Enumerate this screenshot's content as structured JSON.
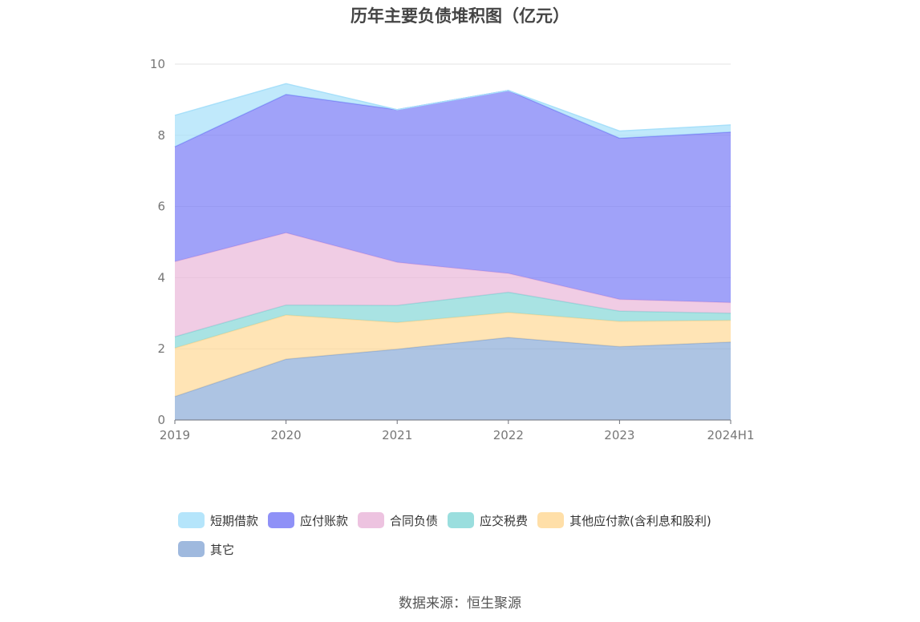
{
  "chart_data": {
    "type": "area",
    "stacked": true,
    "title": "历年主要负债堆积图（亿元）",
    "categories": [
      "2019",
      "2020",
      "2021",
      "2022",
      "2023",
      "2024H1"
    ],
    "ylim": [
      0,
      10
    ],
    "yticks": [
      0,
      2,
      4,
      6,
      8,
      10
    ],
    "grid": true,
    "legend_position": "bottom",
    "series": [
      {
        "name": "其它",
        "color": "#8EADD8",
        "values": [
          0.66,
          1.71,
          1.99,
          2.32,
          2.06,
          2.19
        ]
      },
      {
        "name": "其他应付款(含利息和股利)",
        "color": "#FFD999",
        "values": [
          1.36,
          1.24,
          0.75,
          0.7,
          0.71,
          0.61
        ]
      },
      {
        "name": "应交税费",
        "color": "#88D8D8",
        "values": [
          0.32,
          0.28,
          0.48,
          0.57,
          0.29,
          0.2
        ]
      },
      {
        "name": "合同负债",
        "color": "#EAB8DA",
        "values": [
          2.11,
          2.03,
          1.21,
          0.53,
          0.33,
          0.3
        ]
      },
      {
        "name": "应付账款",
        "color": "#7B7EF6",
        "values": [
          3.23,
          3.89,
          4.29,
          5.14,
          4.53,
          4.79
        ]
      },
      {
        "name": "短期借款",
        "color": "#A8E0FA",
        "values": [
          0.88,
          0.3,
          0.0,
          0.0,
          0.2,
          0.2
        ]
      }
    ]
  },
  "source": "数据来源：恒生聚源"
}
